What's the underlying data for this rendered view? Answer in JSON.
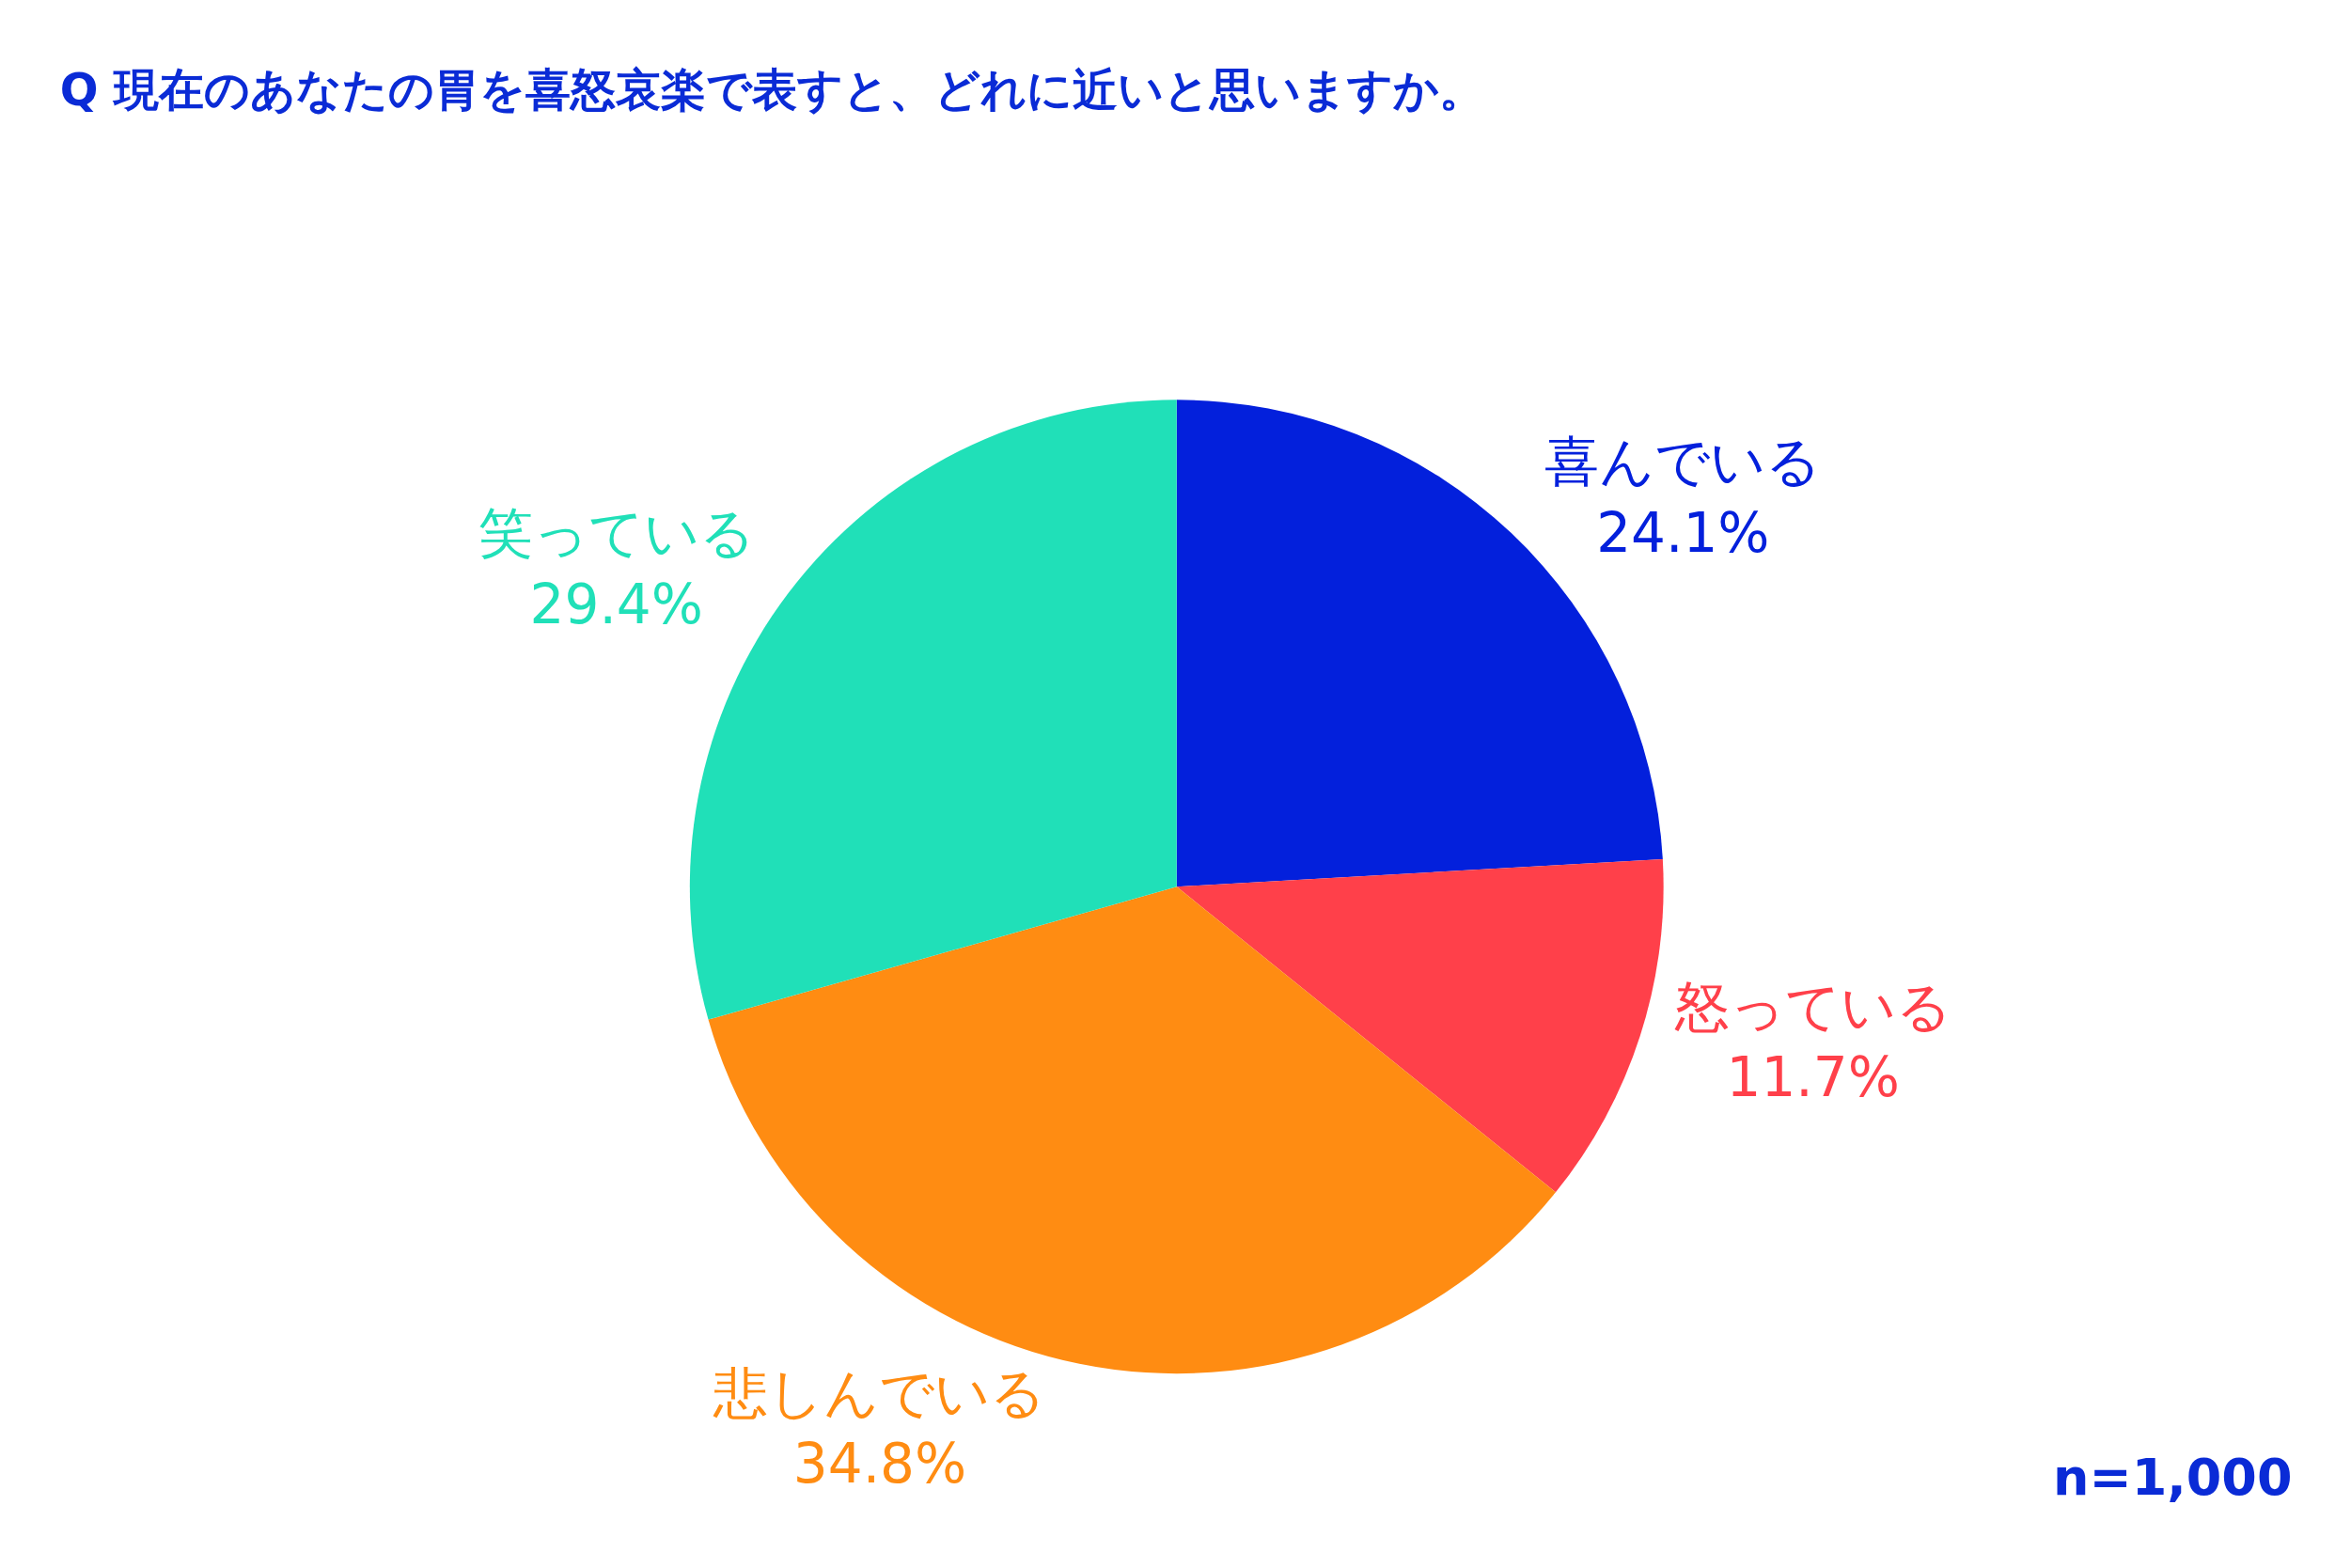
{
  "chart_data": {
    "type": "pie",
    "title": "Q 現在のあなたの胃を喜怒哀楽で表すと、どれに近いと思いますか。",
    "categories": [
      "喜んでいる",
      "怒っている",
      "悲しんでいる",
      "笑っている"
    ],
    "values": [
      24.1,
      11.7,
      34.8,
      29.4
    ],
    "colors": [
      "#0320dc",
      "#ff404a",
      "#ff8c12",
      "#20e0b8"
    ],
    "value_labels": [
      "24.1%",
      "11.7%",
      "34.8%",
      "29.4%"
    ],
    "legend": false,
    "annotations": [
      "n=1,000"
    ]
  }
}
